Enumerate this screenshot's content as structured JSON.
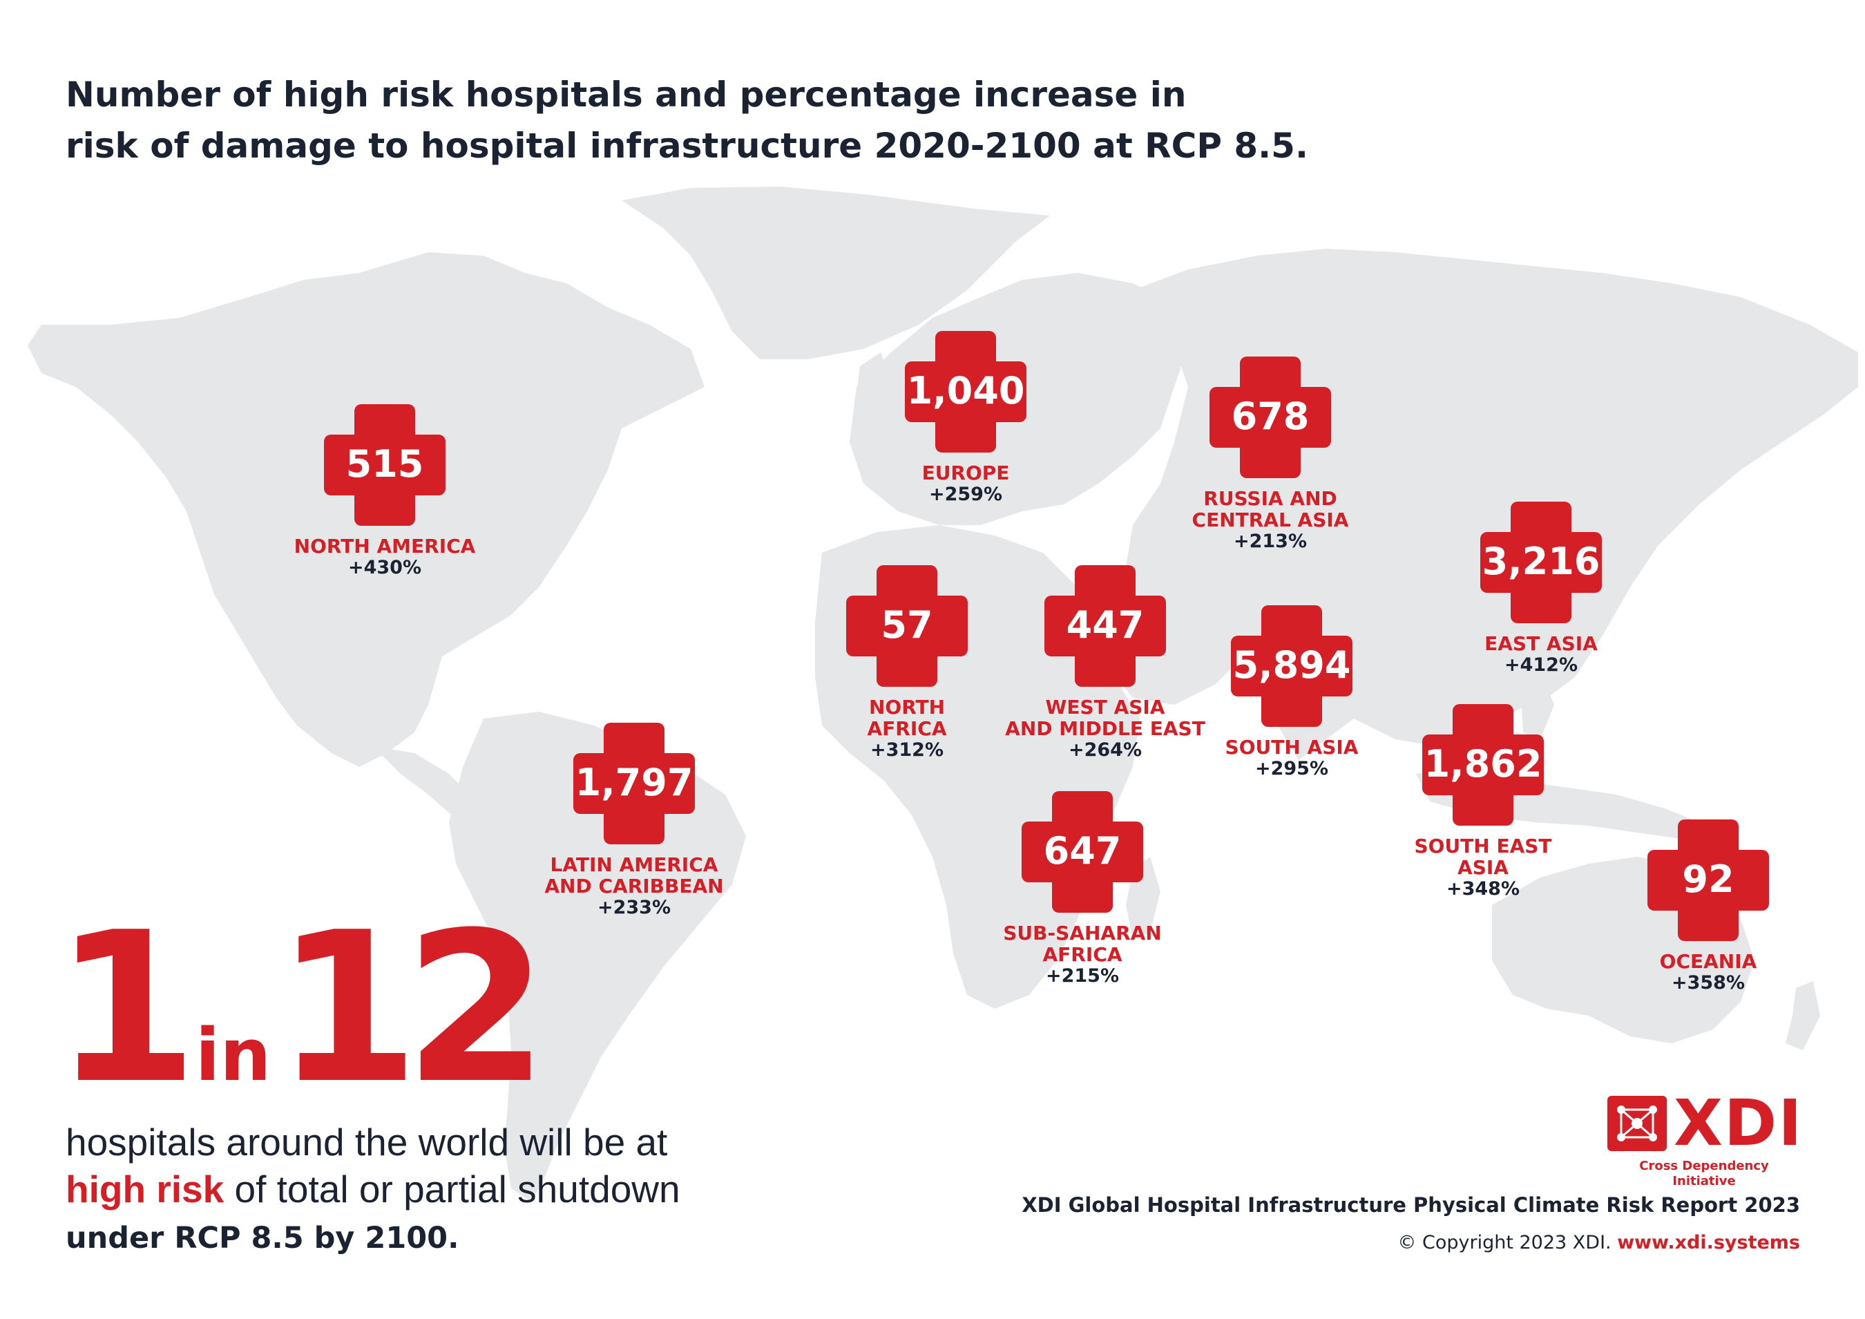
{
  "title": {
    "line1": "Number of high risk hospitals and percentage increase in",
    "line2": "risk of damage to hospital infrastructure 2020-2100 at RCP 8.5."
  },
  "colors": {
    "accent": "#d51f26",
    "text": "#1b2333",
    "land": "#e6e7e8",
    "background": "#ffffff"
  },
  "regions": [
    {
      "id": "north-america",
      "count": "515",
      "name": [
        "NORTH AMERICA"
      ],
      "increase": "+430%"
    },
    {
      "id": "europe",
      "count": "1,040",
      "name": [
        "EUROPE"
      ],
      "increase": "+259%"
    },
    {
      "id": "russia-central-asia",
      "count": "678",
      "name": [
        "RUSSIA AND",
        "CENTRAL ASIA"
      ],
      "increase": "+213%"
    },
    {
      "id": "east-asia",
      "count": "3,216",
      "name": [
        "EAST ASIA"
      ],
      "increase": "+412%"
    },
    {
      "id": "north-africa",
      "count": "57",
      "name": [
        "NORTH",
        "AFRICA"
      ],
      "increase": "+312%"
    },
    {
      "id": "west-asia-middle-east",
      "count": "447",
      "name": [
        "WEST ASIA",
        "AND MIDDLE EAST"
      ],
      "increase": "+264%"
    },
    {
      "id": "south-asia",
      "count": "5,894",
      "name": [
        "SOUTH ASIA"
      ],
      "increase": "+295%"
    },
    {
      "id": "south-east-asia",
      "count": "1,862",
      "name": [
        "SOUTH EAST",
        "ASIA"
      ],
      "increase": "+348%"
    },
    {
      "id": "latin-america-caribbean",
      "count": "1,797",
      "name": [
        "LATIN AMERICA",
        "AND CARIBBEAN"
      ],
      "increase": "+233%"
    },
    {
      "id": "sub-saharan-africa",
      "count": "647",
      "name": [
        "SUB-SAHARAN",
        "AFRICA"
      ],
      "increase": "+215%"
    },
    {
      "id": "oceania",
      "count": "92",
      "name": [
        "OCEANIA"
      ],
      "increase": "+358%"
    }
  ],
  "headline_stat": {
    "number1": "1",
    "connector": "in",
    "number2": "12",
    "line1": "hospitals around the world will be at",
    "line2_highlight": "high risk",
    "line2_rest": " of total or partial shutdown",
    "line3": "under RCP 8.5 by 2100."
  },
  "logo": {
    "name": "XDI",
    "subtitle": "Cross Dependency Initiative",
    "icon": "network-node-icon"
  },
  "footer": {
    "report": "XDI Global Hospital Infrastructure Physical Climate Risk Report 2023",
    "copyright": "© Copyright 2023 XDI. ",
    "website": "www.xdi.systems"
  }
}
